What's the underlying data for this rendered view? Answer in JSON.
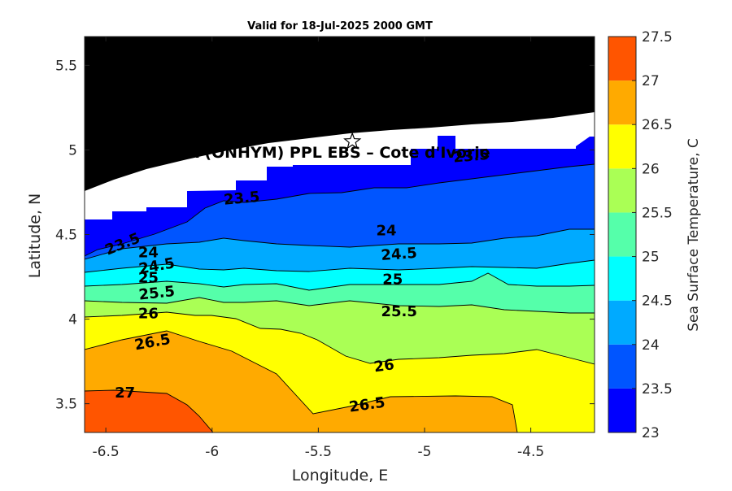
{
  "chart_data": {
    "type": "filled-contour",
    "title": "Valid for 18-Jul-2025 2000 GMT",
    "xlabel": "Longitude, E",
    "ylabel": "Latitude, N",
    "xlim": [
      -6.6,
      -4.2
    ],
    "ylim": [
      3.33,
      5.67
    ],
    "xticks": [
      -6.5,
      -6,
      -5.5,
      -5,
      -4.5
    ],
    "xtick_labels": [
      "-6.5",
      "-6",
      "-5.5",
      "-5",
      "-4.5"
    ],
    "yticks": [
      3.5,
      4,
      4.5,
      5,
      5.5
    ],
    "ytick_labels": [
      "3.5",
      "4",
      "4.5",
      "5",
      "5.5"
    ],
    "colorbar": {
      "label": "Sea Surface Temperature, C",
      "levels": [
        23,
        23.5,
        24,
        24.5,
        25,
        25.5,
        26,
        26.5,
        27,
        27.5
      ],
      "level_labels": [
        "23",
        "23.5",
        "24",
        "24.5",
        "25",
        "25.5",
        "26",
        "26.5",
        "27",
        "27.5"
      ],
      "colors": [
        "#0000ff",
        "#0055ff",
        "#00aaff",
        "#00ffff",
        "#55ffaa",
        "#aaff55",
        "#ffff00",
        "#ffaa00",
        "#ff5500"
      ]
    },
    "land_color": "#000000",
    "mask_color": "#ffffff",
    "marker": {
      "type": "star",
      "lon": -5.34,
      "lat": 5.05,
      "label": "A (ONHYM) PPL EBS  – Cote d'Ivorie"
    },
    "contour_labels": [
      {
        "text": "23.5",
        "lon": -6.42,
        "lat": 4.44,
        "rot": -22
      },
      {
        "text": "24",
        "lon": -6.3,
        "lat": 4.39,
        "rot": 0
      },
      {
        "text": "24.5",
        "lon": -6.26,
        "lat": 4.31,
        "rot": -10
      },
      {
        "text": "25",
        "lon": -6.3,
        "lat": 4.24,
        "rot": 0
      },
      {
        "text": "25.5",
        "lon": -6.26,
        "lat": 4.15,
        "rot": -6
      },
      {
        "text": "26",
        "lon": -6.3,
        "lat": 4.03,
        "rot": 0
      },
      {
        "text": "26.5",
        "lon": -6.28,
        "lat": 3.86,
        "rot": -10
      },
      {
        "text": "27",
        "lon": -6.41,
        "lat": 3.56,
        "rot": 0
      },
      {
        "text": "23.5",
        "lon": -5.86,
        "lat": 4.71,
        "rot": -5
      },
      {
        "text": "23.5",
        "lon": -4.78,
        "lat": 4.96,
        "rot": -5
      },
      {
        "text": "24",
        "lon": -5.18,
        "lat": 4.52,
        "rot": 0
      },
      {
        "text": "24.5",
        "lon": -5.12,
        "lat": 4.38,
        "rot": -4
      },
      {
        "text": "25",
        "lon": -5.15,
        "lat": 4.23,
        "rot": 0
      },
      {
        "text": "25.5",
        "lon": -5.12,
        "lat": 4.04,
        "rot": 0
      },
      {
        "text": "26",
        "lon": -5.19,
        "lat": 3.72,
        "rot": -8
      },
      {
        "text": "26.5",
        "lon": -5.27,
        "lat": 3.49,
        "rot": -8
      }
    ]
  }
}
